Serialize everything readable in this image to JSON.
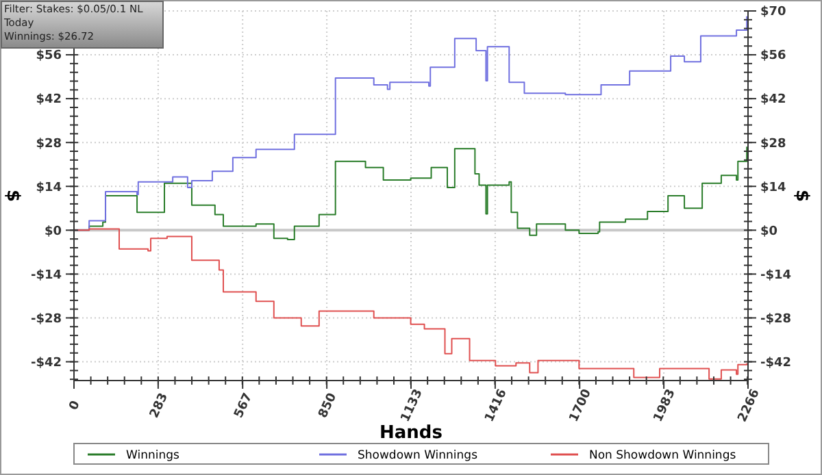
{
  "chart_data": {
    "type": "step",
    "xlabel": "Hands",
    "ylabel": "$",
    "y2label": "$",
    "annotations": [
      "Filter: Stakes: $0.05/0.1 NL",
      "Today",
      "Winnings: $26.72"
    ],
    "xlim": [
      0,
      2266
    ],
    "xticks": [
      0,
      283,
      567,
      850,
      1133,
      1416,
      1700,
      1983,
      2266
    ],
    "ylim": [
      -48,
      70
    ],
    "yticks": [
      {
        "value": -42,
        "label": "-$42"
      },
      {
        "value": -28,
        "label": "-$28"
      },
      {
        "value": -14,
        "label": "-$14"
      },
      {
        "value": 0,
        "label": "$0"
      },
      {
        "value": 14,
        "label": "$14"
      },
      {
        "value": 28,
        "label": "$28"
      },
      {
        "value": 42,
        "label": "$42"
      },
      {
        "value": 56,
        "label": "$56"
      },
      {
        "value": 70,
        "label": null
      }
    ],
    "y2lim": [
      -48,
      70
    ],
    "y2ticks": [
      {
        "value": -42,
        "label": "-$42"
      },
      {
        "value": -28,
        "label": "-$28"
      },
      {
        "value": -14,
        "label": "-$14"
      },
      {
        "value": 0,
        "label": "$0"
      },
      {
        "value": 14,
        "label": "$14"
      },
      {
        "value": 28,
        "label": "$28"
      },
      {
        "value": 42,
        "label": "$42"
      },
      {
        "value": 56,
        "label": "$56"
      },
      {
        "value": 70,
        "label": "$70"
      }
    ],
    "grid": true,
    "legend": "bottom",
    "line_style": "solid",
    "ref_lines": [
      {
        "axis": "y",
        "value": 0,
        "color": "#c8c8c8"
      }
    ],
    "series": [
      {
        "name": "Winnings",
        "color": "#2a7d2a",
        "x": [
          0,
          51,
          97,
          106,
          212,
          304,
          396,
          474,
          502,
          612,
          672,
          718,
          741,
          824,
          879,
          980,
          1040,
          1132,
          1201,
          1255,
          1280,
          1348,
          1362,
          1385,
          1390,
          1463,
          1470,
          1491,
          1532,
          1555,
          1652,
          1698,
          1762,
          1767,
          1854,
          1928,
          1997,
          2052,
          2112,
          2176,
          2227,
          2232,
          2262
        ],
        "values": [
          0,
          1.3,
          2.6,
          11,
          5.7,
          15,
          8,
          5,
          1.3,
          2,
          -2.6,
          -3,
          1.3,
          5,
          22,
          20,
          16,
          16.6,
          20,
          13.6,
          26,
          18,
          14.4,
          5.2,
          14.4,
          15.4,
          5.7,
          0.6,
          -1.6,
          2,
          0,
          -1,
          -0.5,
          2.6,
          3.5,
          6,
          11,
          7,
          15,
          17.5,
          16,
          22,
          26.7
        ]
      },
      {
        "name": "Showdown Winnings",
        "color": "#7070e0",
        "x": [
          0,
          51,
          106,
          212,
          216,
          327,
          332,
          382,
          396,
          465,
          534,
          612,
          741,
          879,
          1008,
          1054,
          1062,
          1193,
          1198,
          1280,
          1352,
          1385,
          1390,
          1463,
          1514,
          1652,
          1767,
          1772,
          1868,
          2006,
          2052,
          2107,
          2227,
          2262
        ],
        "values": [
          0,
          3,
          12.3,
          11.4,
          15.4,
          15.4,
          17,
          13.6,
          15.8,
          18.8,
          23.2,
          25.8,
          30.6,
          48.6,
          46.4,
          45,
          47.2,
          46,
          52,
          61.2,
          57.3,
          47.7,
          58.6,
          47.2,
          43.7,
          43.3,
          43.3,
          46.4,
          50.8,
          55.6,
          53.8,
          62,
          63.9,
          68.3
        ]
      },
      {
        "name": "Non Showdown Winnings",
        "color": "#e05050",
        "x": [
          0,
          51,
          152,
          249,
          258,
          313,
          396,
          488,
          502,
          612,
          672,
          764,
          824,
          1008,
          1132,
          1178,
          1247,
          1270,
          1330,
          1417,
          1486,
          1532,
          1560,
          1698,
          1882,
          1969,
          2135,
          2176,
          2227,
          2232,
          2262
        ],
        "values": [
          0,
          0.4,
          -6,
          -6.6,
          -2.6,
          -2,
          -9.6,
          -12.7,
          -19.7,
          -22.7,
          -28,
          -30.6,
          -25.8,
          -28,
          -30,
          -31.5,
          -39.4,
          -34.6,
          -41.6,
          -43.3,
          -42.4,
          -45.5,
          -41.6,
          -44.2,
          -47,
          -44.2,
          -47.5,
          -44.6,
          -46,
          -42.9,
          -42.5
        ]
      }
    ]
  }
}
